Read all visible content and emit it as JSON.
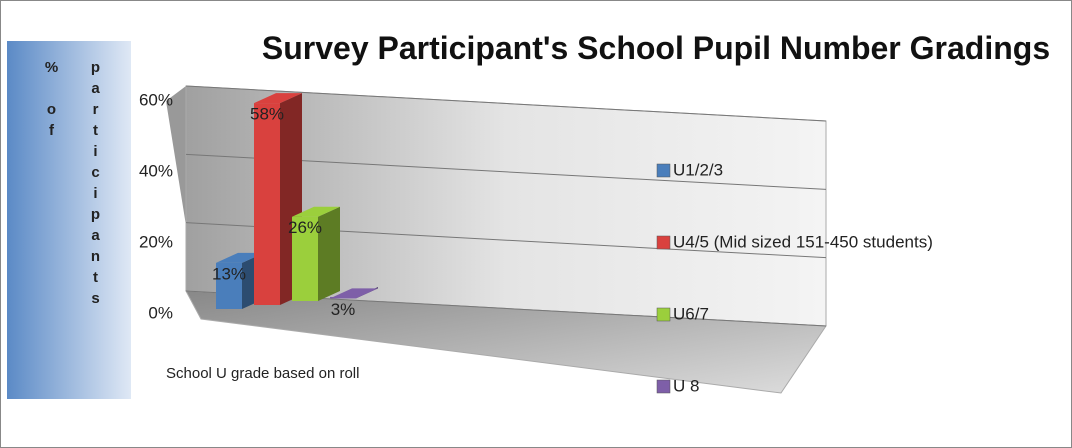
{
  "chart_data": {
    "type": "bar3d",
    "title": "Survey Participant's School Pupil Number Gradings",
    "y_label": "% of participants",
    "categories": [
      "School U grade based on roll"
    ],
    "ylim": [
      0,
      60
    ],
    "yticks": [
      {
        "value": 0,
        "label": "0%"
      },
      {
        "value": 20,
        "label": "20%"
      },
      {
        "value": 40,
        "label": "40%"
      },
      {
        "value": 60,
        "label": "60%"
      }
    ],
    "grid": true,
    "legend": "right",
    "series": [
      {
        "name": "U1/2/3",
        "color": "#4a7ebb",
        "values": [
          13
        ],
        "value_labels": [
          "13%"
        ]
      },
      {
        "name": "U4/5 (Mid sized 151-450 students)",
        "color": "#d9413e",
        "values": [
          58
        ],
        "value_labels": [
          "58%"
        ]
      },
      {
        "name": "U6/7",
        "color": "#9bcf3c",
        "values": [
          26
        ],
        "value_labels": [
          "26%"
        ]
      },
      {
        "name": "U 8",
        "color": "#7e5fa8",
        "values": [
          3
        ],
        "value_labels": [
          "3%"
        ]
      }
    ]
  }
}
